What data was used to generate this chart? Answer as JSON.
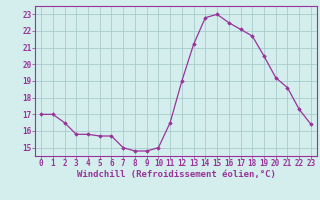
{
  "x": [
    0,
    1,
    2,
    3,
    4,
    5,
    6,
    7,
    8,
    9,
    10,
    11,
    12,
    13,
    14,
    15,
    16,
    17,
    18,
    19,
    20,
    21,
    22,
    23
  ],
  "y": [
    17.0,
    17.0,
    16.5,
    15.8,
    15.8,
    15.7,
    15.7,
    15.0,
    14.8,
    14.8,
    15.0,
    16.5,
    19.0,
    21.2,
    22.8,
    23.0,
    22.5,
    22.1,
    21.7,
    20.5,
    19.2,
    18.6,
    17.3,
    16.4
  ],
  "line_color": "#993399",
  "marker": "D",
  "marker_size": 1.8,
  "line_width": 0.9,
  "bg_color": "#d4eeee",
  "grid_color": "#aacccc",
  "xlabel": "Windchill (Refroidissement éolien,°C)",
  "xlabel_color": "#993399",
  "xlabel_fontsize": 6.5,
  "xtick_labels": [
    "0",
    "1",
    "2",
    "3",
    "4",
    "5",
    "6",
    "7",
    "8",
    "9",
    "10",
    "11",
    "12",
    "13",
    "14",
    "15",
    "16",
    "17",
    "18",
    "19",
    "20",
    "21",
    "22",
    "23"
  ],
  "ytick_labels": [
    "15",
    "16",
    "17",
    "18",
    "19",
    "20",
    "21",
    "22",
    "23"
  ],
  "ytick_vals": [
    15,
    16,
    17,
    18,
    19,
    20,
    21,
    22,
    23
  ],
  "ylim": [
    14.5,
    23.5
  ],
  "xlim": [
    -0.5,
    23.5
  ],
  "tick_color": "#993399",
  "tick_fontsize": 5.5,
  "spine_color": "#993399"
}
